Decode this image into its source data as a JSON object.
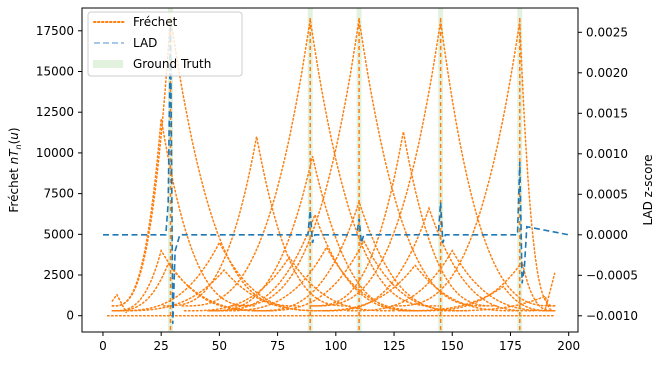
{
  "chart_data": {
    "type": "line",
    "title": "",
    "xlabel": "",
    "ylabel_left": "Fréchet nT_n(u)",
    "ylabel_right": "LAD z-score",
    "xlim": [
      -9,
      204
    ],
    "ylim_left": [
      -1000,
      18900
    ],
    "ylim_right": [
      -0.0012,
      0.0028
    ],
    "x_ticks": [
      0,
      25,
      50,
      75,
      100,
      125,
      150,
      175,
      200
    ],
    "y_left_ticks": [
      0,
      2500,
      5000,
      7500,
      10000,
      12500,
      15000,
      17500
    ],
    "y_right_ticks": [
      -0.001,
      -0.0005,
      0.0,
      0.0005,
      0.001,
      0.0015,
      0.002,
      0.0025
    ],
    "y_right_tick_labels": [
      "−0.0010",
      "−0.0005",
      "0.0000",
      "0.0005",
      "0.0010",
      "0.0015",
      "0.0020",
      "0.0025"
    ],
    "grid": false,
    "legend_position": "top-left",
    "legend": [
      {
        "name": "Fréchet",
        "style": "dotted",
        "color": "#ff7f0e"
      },
      {
        "name": "LAD",
        "style": "dashed",
        "color": "#a6c8e6"
      },
      {
        "name": "Ground Truth",
        "style": "band",
        "color": "#e3f2de"
      }
    ],
    "ground_truth": [
      29,
      89,
      110,
      145,
      179
    ],
    "frechet_peaks": [
      {
        "x": 25,
        "y": 12100
      },
      {
        "x": 29,
        "y": 18300
      },
      {
        "x": 66,
        "y": 11000
      },
      {
        "x": 89,
        "y": 18200
      },
      {
        "x": 110,
        "y": 18200
      },
      {
        "x": 129,
        "y": 11300
      },
      {
        "x": 145,
        "y": 18100
      },
      {
        "x": 179,
        "y": 18100
      }
    ],
    "lad_series": {
      "x": [
        0,
        27,
        28,
        29,
        30,
        31,
        32,
        33,
        87,
        88,
        89,
        90,
        91,
        108,
        109,
        110,
        111,
        112,
        143,
        144,
        145,
        146,
        147,
        177,
        178,
        179,
        180,
        181,
        182,
        200
      ],
      "y": [
        0.0,
        0.0,
        0.0004,
        0.0026,
        -0.0011,
        -0.0002,
        -0.0001,
        0.0,
        0.0,
        0.0,
        0.0003,
        -0.0001,
        0.0,
        0.0,
        0.0,
        0.0002,
        -0.0001,
        0.0,
        0.0,
        0.0,
        0.0004,
        -0.0001,
        0.0,
        0.0,
        0.0,
        0.0009,
        -0.0006,
        -0.0004,
        0.0001,
        0.0
      ]
    }
  }
}
